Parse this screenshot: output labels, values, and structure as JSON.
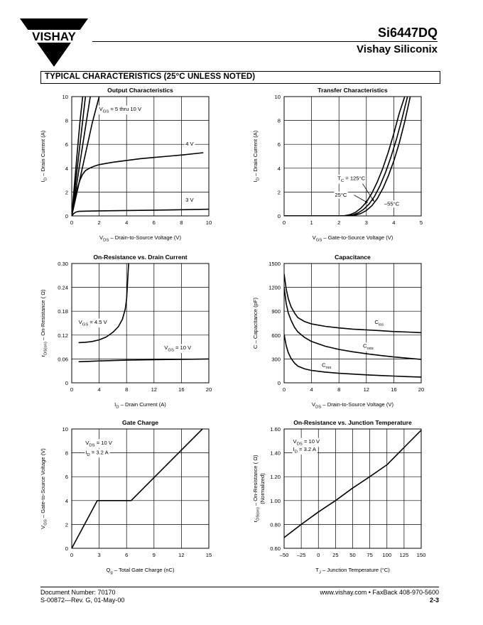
{
  "header": {
    "logo_text": "VISHAY",
    "part_number": "Si6447DQ",
    "company": "Vishay Siliconix"
  },
  "section_title": "TYPICAL CHARACTERISTICS (25°C UNLESS NOTED)",
  "footer": {
    "doc_number": "Document Number:  70170",
    "revision": "S-00872—Rev. G, 01-May-00",
    "contact": "www.vishay.com • FaxBack 408-970-5600",
    "page": "2-3"
  },
  "chart_data": [
    {
      "id": "output",
      "type": "line",
      "title": "Output Characteristics",
      "xlabel_parts": [
        [
          "V",
          ""
        ],
        [
          "DS",
          "sub"
        ],
        [
          "  –  Drain-to-Source Voltage (V)",
          ""
        ]
      ],
      "ylabel_parts": [
        [
          "I",
          ""
        ],
        [
          "D",
          "sub"
        ],
        [
          "  –  Drain Current (A)",
          ""
        ]
      ],
      "xlim": [
        0,
        10
      ],
      "ylim": [
        0,
        10
      ],
      "xticks": [
        0,
        2,
        4,
        6,
        8,
        10
      ],
      "xtick_labels": [
        "0",
        "2",
        "4",
        "6",
        "8",
        "10"
      ],
      "yticks": [
        0,
        2,
        4,
        6,
        8,
        10
      ],
      "ytick_labels": [
        "0",
        "2",
        "4",
        "6",
        "8",
        "10"
      ],
      "grid": true,
      "series": [
        {
          "x": [
            0,
            0.2,
            0.4,
            0.6,
            0.8
          ],
          "y": [
            0,
            2.7,
            5.3,
            7.9,
            10
          ]
        },
        {
          "x": [
            0,
            0.25,
            0.5,
            0.75,
            1.0
          ],
          "y": [
            0,
            2.5,
            5.0,
            7.5,
            10
          ]
        },
        {
          "x": [
            0,
            0.35,
            0.7,
            1.05,
            1.35
          ],
          "y": [
            0,
            2.6,
            5.2,
            7.8,
            10
          ]
        },
        {
          "x": [
            0,
            0.5,
            1.0,
            1.5,
            2.0
          ],
          "y": [
            0,
            2.6,
            5.2,
            7.8,
            10
          ]
        },
        {
          "x": [
            0,
            0.2,
            0.4,
            0.6,
            0.8,
            1.0,
            1.3,
            1.6,
            2.0,
            3.0,
            4.0,
            5.0,
            6.0,
            7.0,
            8.0,
            9.6
          ],
          "y": [
            0,
            1.3,
            2.3,
            3.0,
            3.5,
            3.8,
            4.0,
            4.15,
            4.3,
            4.5,
            4.65,
            4.8,
            4.9,
            5.0,
            5.1,
            5.3
          ]
        },
        {
          "x": [
            0,
            0.15,
            0.3,
            0.5,
            1.0,
            2.0,
            4.0,
            6.0,
            8.0,
            10.0
          ],
          "y": [
            0,
            0.2,
            0.32,
            0.38,
            0.4,
            0.42,
            0.45,
            0.48,
            0.52,
            0.56
          ]
        }
      ],
      "annotations": [
        {
          "parts": [
            [
              "V",
              ""
            ],
            [
              "GS",
              "sub"
            ],
            [
              " = 5 thru 10 V",
              ""
            ]
          ],
          "x": 2.0,
          "y": 8.8
        },
        {
          "parts": [
            [
              "4 V",
              ""
            ]
          ],
          "x": 8.3,
          "y": 5.9
        },
        {
          "parts": [
            [
              "3 V",
              ""
            ]
          ],
          "x": 8.3,
          "y": 1.2
        }
      ]
    },
    {
      "id": "transfer",
      "type": "line",
      "title": "Transfer Characteristics",
      "xlabel_parts": [
        [
          "V",
          ""
        ],
        [
          "GS",
          "sub"
        ],
        [
          "  –  Gate-to-Source Voltage (V)",
          ""
        ]
      ],
      "ylabel_parts": [
        [
          "I",
          ""
        ],
        [
          "D",
          "sub"
        ],
        [
          "  –  Drain Current (A)",
          ""
        ]
      ],
      "xlim": [
        0,
        5
      ],
      "ylim": [
        0,
        10
      ],
      "xticks": [
        0,
        1,
        2,
        3,
        4,
        5
      ],
      "xtick_labels": [
        "0",
        "1",
        "2",
        "3",
        "4",
        "5"
      ],
      "yticks": [
        0,
        2,
        4,
        6,
        8,
        10
      ],
      "ytick_labels": [
        "0",
        "2",
        "4",
        "6",
        "8",
        "10"
      ],
      "grid": true,
      "series": [
        {
          "x": [
            0,
            2.0,
            2.2,
            2.4,
            2.6,
            2.8,
            3.0,
            3.2,
            3.4,
            3.6,
            3.8,
            4.0,
            4.2,
            4.4
          ],
          "y": [
            0,
            0,
            0.02,
            0.1,
            0.3,
            0.65,
            1.15,
            1.9,
            2.85,
            4.0,
            5.35,
            6.9,
            8.6,
            10.0
          ]
        },
        {
          "x": [
            0,
            2.1,
            2.3,
            2.5,
            2.7,
            2.9,
            3.1,
            3.3,
            3.5,
            3.7,
            3.9,
            4.1,
            4.3,
            4.5
          ],
          "y": [
            0,
            0,
            0.02,
            0.08,
            0.25,
            0.55,
            1.0,
            1.65,
            2.55,
            3.65,
            4.95,
            6.45,
            8.15,
            10.0
          ]
        },
        {
          "x": [
            0,
            2.2,
            2.4,
            2.6,
            2.8,
            3.0,
            3.2,
            3.4,
            3.6,
            3.8,
            4.0,
            4.2,
            4.4,
            4.6
          ],
          "y": [
            0,
            0,
            0.02,
            0.07,
            0.2,
            0.45,
            0.85,
            1.45,
            2.3,
            3.35,
            4.6,
            6.1,
            7.9,
            10.0
          ]
        }
      ],
      "annotations": [
        {
          "parts": [
            [
              "T",
              ""
            ],
            [
              "C",
              "sub"
            ],
            [
              " = 125°C",
              ""
            ]
          ],
          "x": 1.95,
          "y": 3.0
        },
        {
          "parts": [
            [
              "25°C",
              ""
            ]
          ],
          "x": 1.85,
          "y": 1.6
        },
        {
          "parts": [
            [
              "–55°C",
              ""
            ]
          ],
          "x": 3.65,
          "y": 0.85
        }
      ],
      "arrows": [
        {
          "from": [
            2.85,
            2.75
          ],
          "to": [
            3.28,
            1.2
          ]
        },
        {
          "from": [
            2.55,
            1.75
          ],
          "to": [
            3.05,
            1.1
          ]
        }
      ]
    },
    {
      "id": "on_resistance_current",
      "type": "line",
      "title": "On-Resistance vs. Drain Current",
      "xlabel_parts": [
        [
          "I",
          ""
        ],
        [
          "D",
          "sub"
        ],
        [
          "  –  Drain Current (A)",
          ""
        ]
      ],
      "ylabel_parts": [
        [
          "r",
          ""
        ],
        [
          "DS(on)",
          "sub"
        ],
        [
          "  –  On-Resistance ( Ω)",
          ""
        ]
      ],
      "xlim": [
        0,
        20
      ],
      "ylim": [
        0,
        0.3
      ],
      "xticks": [
        0,
        4,
        8,
        12,
        16,
        20
      ],
      "xtick_labels": [
        "0",
        "4",
        "8",
        "12",
        "16",
        "20"
      ],
      "yticks": [
        0,
        0.06,
        0.12,
        0.18,
        0.24,
        0.3
      ],
      "ytick_labels": [
        "0",
        "0.06",
        "0.12",
        "0.18",
        "0.24",
        "0.30"
      ],
      "grid": true,
      "series": [
        {
          "x": [
            1,
            2,
            3,
            4,
            5,
            6,
            6.8,
            7.4,
            7.8,
            8.0,
            8.1,
            8.2,
            8.3
          ],
          "y": [
            0.101,
            0.102,
            0.104,
            0.108,
            0.115,
            0.127,
            0.141,
            0.16,
            0.185,
            0.21,
            0.24,
            0.27,
            0.3
          ]
        },
        {
          "x": [
            1,
            4,
            8,
            12,
            16,
            20
          ],
          "y": [
            0.053,
            0.055,
            0.057,
            0.058,
            0.059,
            0.06
          ]
        }
      ],
      "annotations": [
        {
          "parts": [
            [
              "V",
              ""
            ],
            [
              "GS",
              "sub"
            ],
            [
              " = 4.5 V",
              ""
            ]
          ],
          "x": 1.0,
          "y": 0.148
        },
        {
          "parts": [
            [
              "V",
              ""
            ],
            [
              "GS",
              "sub"
            ],
            [
              " = 10 V",
              ""
            ]
          ],
          "x": 13.5,
          "y": 0.084
        }
      ]
    },
    {
      "id": "capacitance",
      "type": "line",
      "title": "Capacitance",
      "xlabel_parts": [
        [
          "V",
          ""
        ],
        [
          "DS",
          "sub"
        ],
        [
          "  –  Drain-to-Source Voltage (V)",
          ""
        ]
      ],
      "ylabel_parts": [
        [
          "C  –  Capacitance (pF)",
          ""
        ]
      ],
      "xlim": [
        0,
        20
      ],
      "ylim": [
        0,
        1500
      ],
      "xticks": [
        0,
        4,
        8,
        12,
        16,
        20
      ],
      "xtick_labels": [
        "0",
        "4",
        "8",
        "12",
        "16",
        "20"
      ],
      "yticks": [
        0,
        300,
        600,
        900,
        1200,
        1500
      ],
      "ytick_labels": [
        "0",
        "300",
        "600",
        "900",
        "1200",
        "1500"
      ],
      "grid": true,
      "series": [
        {
          "x": [
            0,
            0.3,
            0.6,
            1.0,
            1.5,
            2.0,
            3.0,
            4.0,
            6.0,
            8.0,
            10.0,
            12.0,
            14.0,
            16.0,
            18.0,
            20.0
          ],
          "y": [
            1370,
            1180,
            1060,
            960,
            880,
            820,
            770,
            740,
            710,
            690,
            675,
            665,
            655,
            645,
            638,
            630
          ]
        },
        {
          "x": [
            0,
            0.3,
            0.6,
            1.0,
            1.5,
            2.0,
            3.0,
            4.0,
            6.0,
            8.0,
            10.0,
            12.0,
            14.0,
            16.0,
            18.0,
            20.0
          ],
          "y": [
            1200,
            1000,
            880,
            790,
            700,
            640,
            570,
            520,
            460,
            420,
            390,
            365,
            345,
            325,
            310,
            295
          ]
        },
        {
          "x": [
            0,
            0.3,
            0.6,
            1.0,
            1.5,
            2.0,
            3.0,
            4.0,
            6.0,
            8.0,
            10.0,
            12.0,
            14.0,
            16.0,
            18.0,
            20.0
          ],
          "y": [
            610,
            470,
            380,
            310,
            250,
            210,
            175,
            155,
            135,
            120,
            110,
            100,
            92,
            85,
            78,
            72
          ]
        }
      ],
      "annotations": [
        {
          "parts": [
            [
              "C",
              ""
            ],
            [
              "iss",
              "sub"
            ]
          ],
          "x": 13.2,
          "y": 740
        },
        {
          "parts": [
            [
              "C",
              ""
            ],
            [
              "oss",
              "sub"
            ]
          ],
          "x": 11.5,
          "y": 440
        },
        {
          "parts": [
            [
              "C",
              ""
            ],
            [
              "rss",
              "sub"
            ]
          ],
          "x": 5.5,
          "y": 200
        }
      ]
    },
    {
      "id": "gate_charge",
      "type": "line",
      "title": "Gate Charge",
      "xlabel_parts": [
        [
          "Q",
          ""
        ],
        [
          "g",
          "sub"
        ],
        [
          "  –  Total Gate Charge (nC)",
          ""
        ]
      ],
      "ylabel_parts": [
        [
          "V",
          ""
        ],
        [
          "GS",
          "sub"
        ],
        [
          "  –  Gate-to-Source Voltage (V)",
          ""
        ]
      ],
      "xlim": [
        0,
        15
      ],
      "ylim": [
        0,
        10
      ],
      "xticks": [
        0,
        3,
        6,
        9,
        12,
        15
      ],
      "xtick_labels": [
        "0",
        "3",
        "6",
        "9",
        "12",
        "15"
      ],
      "yticks": [
        0,
        2,
        4,
        6,
        8,
        10
      ],
      "ytick_labels": [
        "0",
        "2",
        "4",
        "6",
        "8",
        "10"
      ],
      "grid": true,
      "series": [
        {
          "x": [
            0,
            2.8,
            6.5,
            14.3
          ],
          "y": [
            0,
            4.0,
            4.0,
            10.0
          ]
        }
      ],
      "annotations": [
        {
          "parts": [
            [
              "V",
              ""
            ],
            [
              "DS",
              "sub"
            ],
            [
              " = 10  V",
              ""
            ]
          ],
          "x": 1.5,
          "y": 8.7
        },
        {
          "parts": [
            [
              "I",
              ""
            ],
            [
              "D",
              "sub"
            ],
            [
              " = 3.2   A",
              ""
            ]
          ],
          "x": 1.5,
          "y": 7.9
        }
      ]
    },
    {
      "id": "on_resistance_temp",
      "type": "line",
      "title": "On-Resistance vs. Junction Temperature",
      "xlabel_parts": [
        [
          "T",
          ""
        ],
        [
          "J",
          "sub"
        ],
        [
          " – Junction Temperature (°C)",
          ""
        ]
      ],
      "ylabel_parts": [
        [
          "r",
          ""
        ],
        [
          "DS(on)",
          "sub"
        ],
        [
          "  – On-Resistance (   Ω)",
          ""
        ]
      ],
      "ylabel2": "(Normalized)",
      "xlim": [
        -50,
        150
      ],
      "ylim": [
        0.6,
        1.6
      ],
      "xticks": [
        -50,
        -25,
        0,
        25,
        50,
        75,
        100,
        125,
        150
      ],
      "xtick_labels": [
        "–50",
        "–25",
        "0",
        "25",
        "50",
        "75",
        "100",
        "125",
        "150"
      ],
      "yticks": [
        0.6,
        0.8,
        1.0,
        1.2,
        1.4,
        1.6
      ],
      "ytick_labels": [
        "0.60",
        "0.80",
        "1.00",
        "1.20",
        "1.40",
        "1.60"
      ],
      "grid": true,
      "series": [
        {
          "x": [
            -50,
            -25,
            0,
            25,
            50,
            75,
            100,
            125,
            150
          ],
          "y": [
            0.69,
            0.8,
            0.905,
            1.0,
            1.105,
            1.2,
            1.3,
            1.445,
            1.59
          ]
        }
      ],
      "annotations": [
        {
          "parts": [
            [
              "V",
              ""
            ],
            [
              "DS",
              "sub"
            ],
            [
              " = 10 V",
              ""
            ]
          ],
          "x": -37,
          "y": 1.48
        },
        {
          "parts": [
            [
              "I",
              ""
            ],
            [
              "D",
              "sub"
            ],
            [
              " = 3.2   A",
              ""
            ]
          ],
          "x": -37,
          "y": 1.415
        }
      ]
    }
  ]
}
